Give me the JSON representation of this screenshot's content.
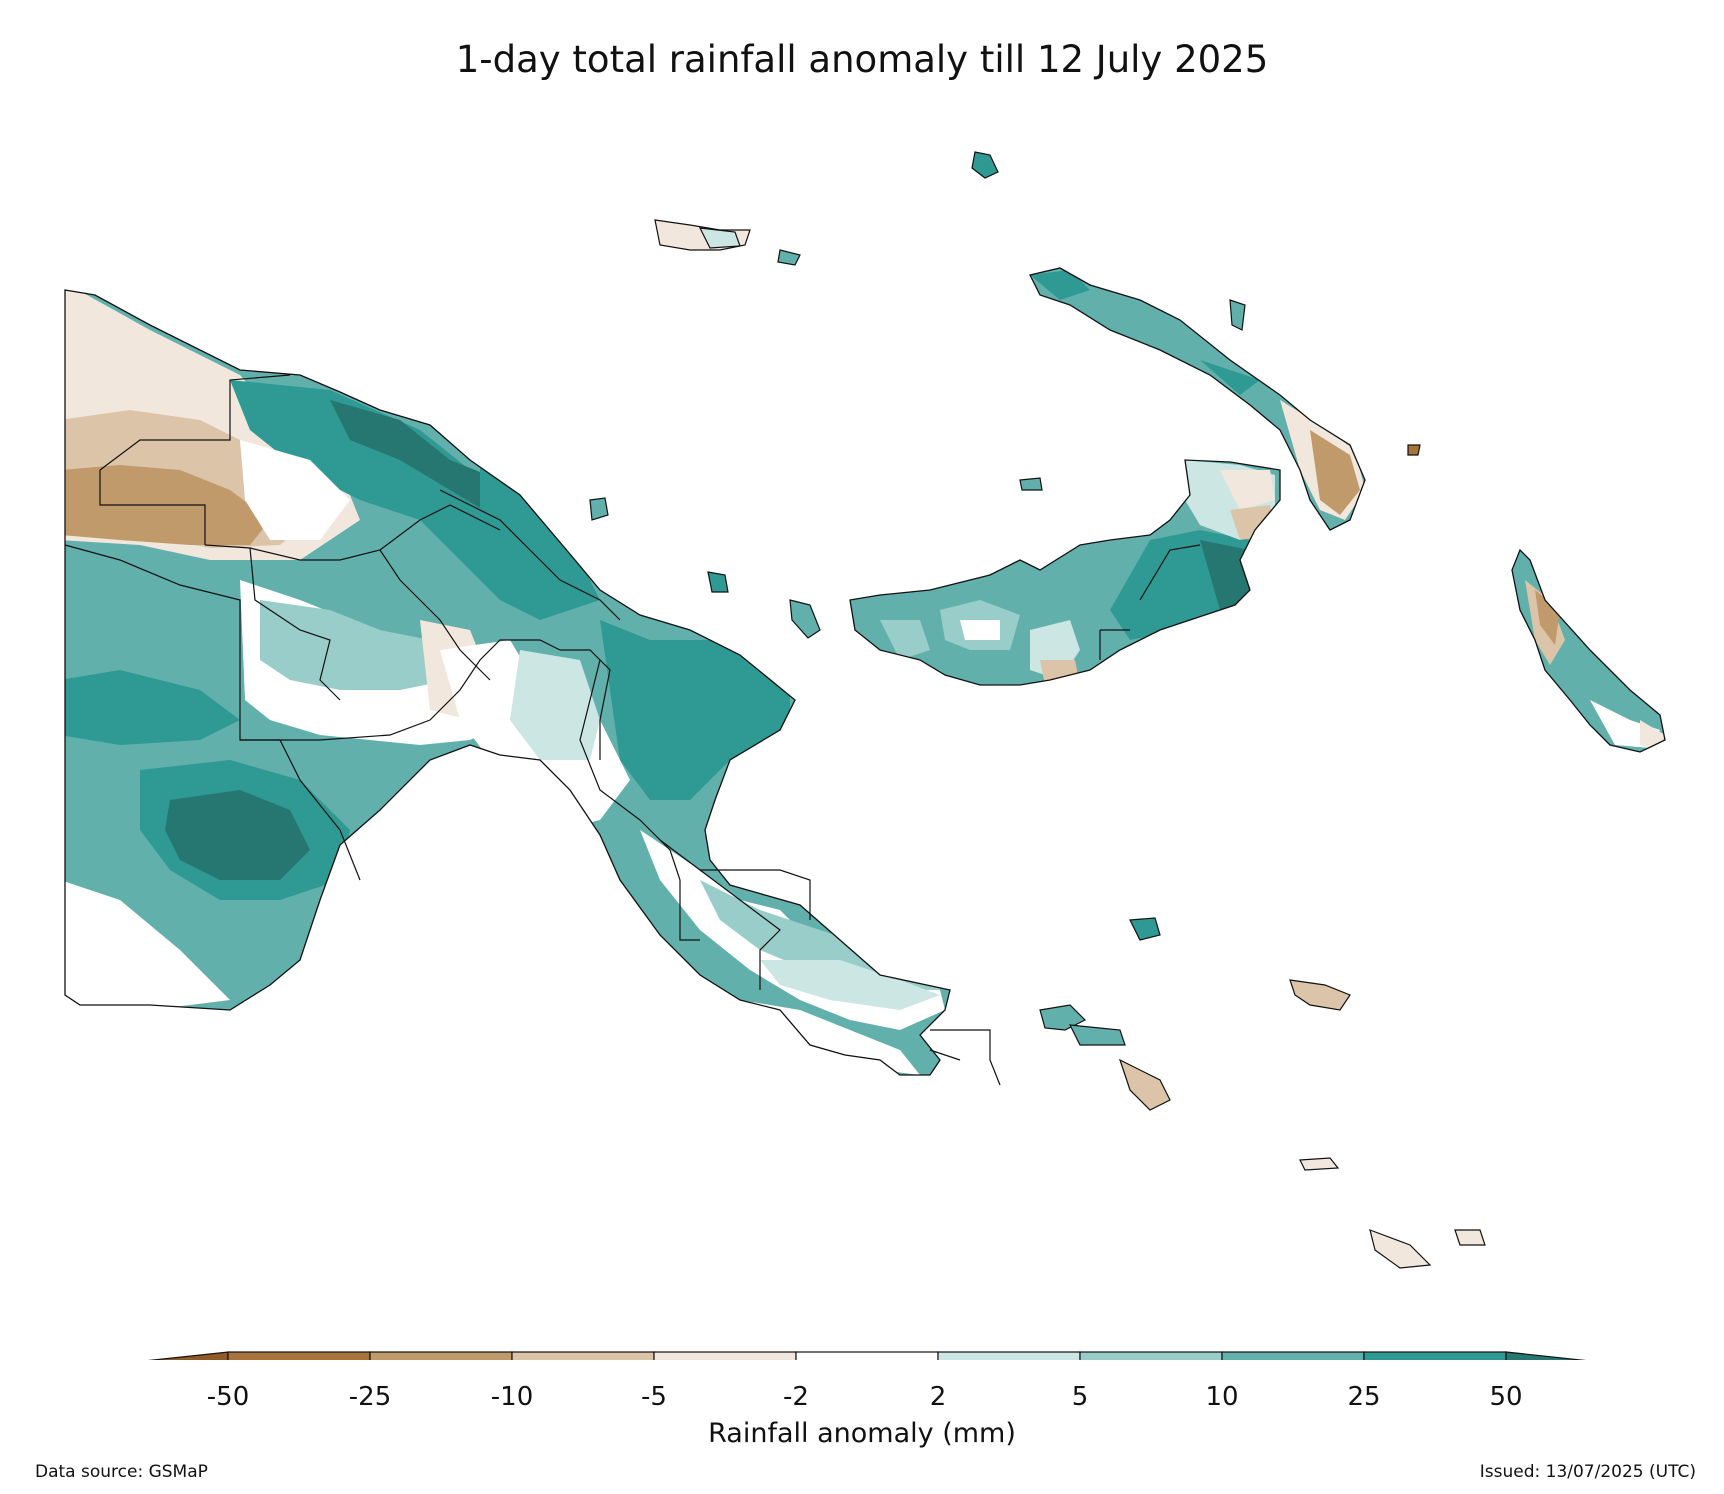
{
  "title": "1-day total rainfall anomaly till 12 July 2025",
  "legend": {
    "label": "Rainfall anomaly (mm)",
    "ticks": [
      "-50",
      "-25",
      "-10",
      "-5",
      "-2",
      "2",
      "5",
      "10",
      "25",
      "50"
    ],
    "colors": {
      "below_-50": "#8f5a25",
      "-50_-25": "#a8733a",
      "-25_-10": "#c19a6b",
      "-10_-5": "#dcc4a8",
      "-5_-2": "#f2e7dd",
      "-2_2": "#ffffff",
      "2_5": "#cce6e4",
      "5_10": "#99cdc9",
      "10_25": "#62b0ac",
      "25_50": "#2f9993",
      "above_50": "#267672"
    }
  },
  "footer": {
    "source": "Data source: GSMaP",
    "issued": "Issued: 13/07/2025 (UTC)"
  }
}
